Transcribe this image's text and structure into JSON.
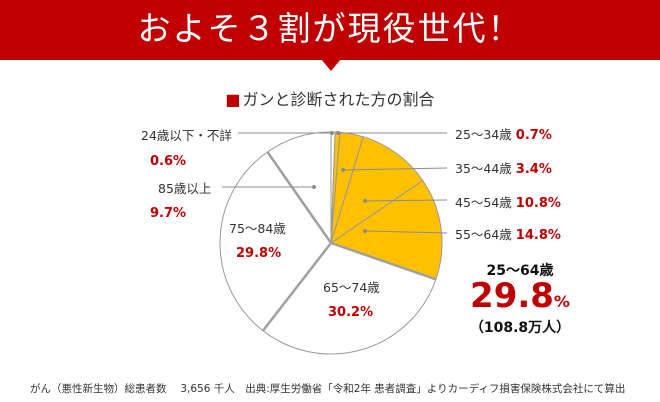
{
  "banner": {
    "title": "およそ３割が現役世代！",
    "color": "#c00000"
  },
  "chart_data": {
    "type": "pie",
    "title": "ガンと診断された方の割合",
    "start": "top",
    "direction": "clockwise",
    "categories": [
      "24歳以下・不詳",
      "25～34歳",
      "35～44歳",
      "45～54歳",
      "55～64歳",
      "65～74歳",
      "75～84歳",
      "85歳以上"
    ],
    "values": [
      0.6,
      0.7,
      3.4,
      10.8,
      14.8,
      30.2,
      29.8,
      9.7
    ],
    "value_labels": [
      "0.6%",
      "0.7%",
      "3.4%",
      "10.8%",
      "14.8%",
      "30.2%",
      "29.8%",
      "9.7%"
    ],
    "colors": [
      "#ffffff",
      "#ffc000",
      "#ffc000",
      "#ffc000",
      "#ffc000",
      "#ffffff",
      "#ffffff",
      "#ffffff"
    ],
    "highlight_color": "#ffc000"
  },
  "summary": {
    "age": "25～64歳",
    "value": "29.8",
    "unit": "%",
    "count": "（108.8万人）"
  },
  "footer": "がん（悪性新生物）総患者数　 3,656 千人　出典:厚生労働省「令和2年 患者調査」よりカーディフ損害保険株式会社にて算出"
}
